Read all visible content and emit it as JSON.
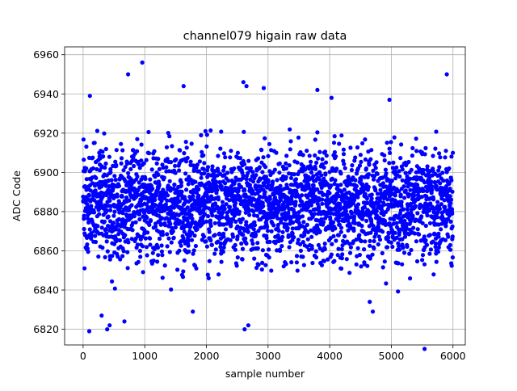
{
  "chart_data": {
    "type": "scatter",
    "title": "channel079 higain raw data",
    "xlabel": "sample number",
    "ylabel": "ADC Code",
    "xlim": [
      -300,
      6200
    ],
    "ylim": [
      6812,
      6964
    ],
    "xticks": [
      0,
      1000,
      2000,
      3000,
      4000,
      5000,
      6000
    ],
    "yticks": [
      6820,
      6840,
      6860,
      6880,
      6900,
      6920,
      6940,
      6960
    ],
    "grid": true,
    "marker_color": "#0000ff",
    "sample_count": 6000,
    "baseline": 6884,
    "band": [
      6838,
      6922
    ],
    "notable_points": [
      {
        "x": 960,
        "y": 6956
      },
      {
        "x": 730,
        "y": 6950
      },
      {
        "x": 5900,
        "y": 6950
      },
      {
        "x": 1630,
        "y": 6944
      },
      {
        "x": 2600,
        "y": 6946
      },
      {
        "x": 2650,
        "y": 6944
      },
      {
        "x": 2930,
        "y": 6943
      },
      {
        "x": 3800,
        "y": 6942
      },
      {
        "x": 110,
        "y": 6939
      },
      {
        "x": 4030,
        "y": 6938
      },
      {
        "x": 4970,
        "y": 6937
      },
      {
        "x": 2680,
        "y": 6822
      },
      {
        "x": 2620,
        "y": 6820
      },
      {
        "x": 100,
        "y": 6819
      },
      {
        "x": 430,
        "y": 6822
      },
      {
        "x": 390,
        "y": 6820
      },
      {
        "x": 300,
        "y": 6827
      },
      {
        "x": 670,
        "y": 6824
      },
      {
        "x": 5540,
        "y": 6810
      },
      {
        "x": 1780,
        "y": 6829
      },
      {
        "x": 4700,
        "y": 6829
      },
      {
        "x": 4650,
        "y": 6834
      }
    ]
  }
}
